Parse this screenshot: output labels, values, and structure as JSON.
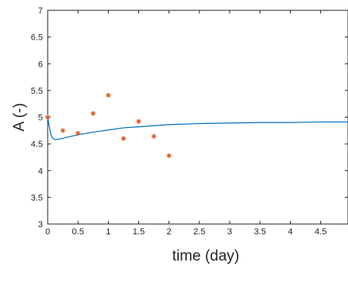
{
  "chart_data": {
    "type": "line",
    "xlabel": "time (day)",
    "ylabel": "A (-)",
    "xlim": [
      0,
      4.95
    ],
    "ylim": [
      3,
      7
    ],
    "xticks": [
      0,
      0.5,
      1,
      1.5,
      2,
      2.5,
      3,
      3.5,
      4,
      4.5
    ],
    "xtick_labels": [
      "0",
      "0.5",
      "1",
      "1.5",
      "2",
      "2.5",
      "3",
      "3.5",
      "4",
      "4.5"
    ],
    "yticks": [
      3,
      3.5,
      4,
      4.5,
      5,
      5.5,
      6,
      6.5,
      7
    ],
    "ytick_labels": [
      "3",
      "3.5",
      "4",
      "4.5",
      "5",
      "5.5",
      "6",
      "6.5",
      "7"
    ],
    "grid": false,
    "series": [
      {
        "kind": "line",
        "color": "#0072BD",
        "x": [
          0,
          0.03,
          0.06,
          0.09,
          0.12,
          0.2,
          0.3,
          0.5,
          0.75,
          1.0,
          1.25,
          1.5,
          1.75,
          2.0,
          2.5,
          3.0,
          3.5,
          4.0,
          4.5,
          4.95
        ],
        "y": [
          5.0,
          4.8,
          4.65,
          4.6,
          4.58,
          4.59,
          4.62,
          4.67,
          4.72,
          4.76,
          4.8,
          4.82,
          4.84,
          4.86,
          4.88,
          4.89,
          4.9,
          4.9,
          4.91,
          4.91
        ]
      },
      {
        "kind": "scatter",
        "marker": "*",
        "color": "#D95319",
        "x": [
          0,
          0.25,
          0.5,
          0.75,
          1.0,
          1.25,
          1.5,
          1.75,
          2.0
        ],
        "y": [
          5.0,
          4.75,
          4.7,
          5.07,
          5.41,
          4.6,
          4.92,
          4.64,
          4.28
        ]
      }
    ]
  }
}
